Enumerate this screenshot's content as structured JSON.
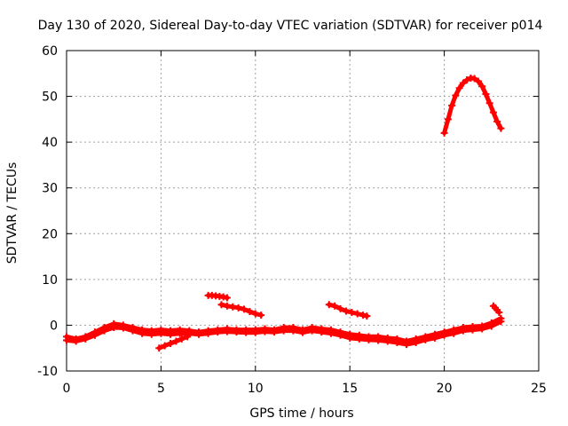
{
  "chart_data": {
    "type": "scatter",
    "title": "Day 130 of 2020, Sidereal Day-to-day VTEC variation (SDTVAR) for receiver p014",
    "xlabel": "GPS time / hours",
    "ylabel": "SDTVAR / TECUs",
    "xlim": [
      0,
      25
    ],
    "ylim": [
      -10,
      60
    ],
    "x_ticks": [
      0,
      5,
      10,
      15,
      20,
      25
    ],
    "y_ticks": [
      -10,
      0,
      10,
      20,
      30,
      40,
      50,
      60
    ],
    "x_tick_labels": [
      "0",
      "5",
      "10",
      "15",
      "20",
      "25"
    ],
    "y_tick_labels": [
      "-10",
      "0",
      "10",
      "20",
      "30",
      "40",
      "50",
      "60"
    ],
    "grid": true,
    "marker": "plus",
    "color": "#ff0000",
    "series": [
      {
        "name": "track-main",
        "x": [
          0,
          0.5,
          1,
          1.5,
          2,
          2.5,
          3,
          3.5,
          4,
          4.5,
          5,
          5.5,
          6,
          6.5,
          7,
          7.5,
          8,
          8.5,
          9,
          9.5,
          10,
          10.5,
          11,
          11.5,
          12,
          12.5,
          13,
          13.5,
          14,
          14.5,
          15,
          15.5,
          16,
          16.5,
          17,
          17.5,
          18,
          18.5,
          19,
          19.5,
          20,
          20.5,
          21,
          21.5,
          22,
          22.5,
          23
        ],
        "y": [
          -2.5,
          -3,
          -2.5,
          -1.5,
          -0.5,
          0.3,
          0,
          -0.5,
          -1,
          -1.2,
          -1,
          -1.2,
          -1,
          -1.2,
          -1.5,
          -1.2,
          -1,
          -0.8,
          -1,
          -1,
          -1,
          -0.8,
          -1,
          -0.5,
          -0.5,
          -1,
          -0.5,
          -0.8,
          -1,
          -1.5,
          -2,
          -2.2,
          -2.5,
          -2.5,
          -2.8,
          -3,
          -3.5,
          -3,
          -2.5,
          -2,
          -1.5,
          -1,
          -0.5,
          -0.3,
          -0.2,
          0.5,
          1.5
        ]
      },
      {
        "name": "track-lower",
        "x": [
          0,
          0.5,
          1,
          1.5,
          2,
          2.5,
          3,
          3.5,
          4,
          4.5,
          5,
          5.5,
          6,
          6.5,
          7,
          7.5,
          8,
          8.5,
          9,
          9.5,
          10,
          10.5,
          11,
          11.5,
          12,
          12.5,
          13,
          13.5,
          14,
          14.5,
          15,
          15.5,
          16,
          16.5,
          17,
          17.5,
          18,
          18.5,
          19,
          19.5,
          20,
          20.5,
          21,
          21.5,
          22,
          22.5,
          23
        ],
        "y": [
          -3.3,
          -3.5,
          -3,
          -2.2,
          -1.2,
          -0.5,
          -0.6,
          -1.2,
          -1.8,
          -2,
          -1.8,
          -2,
          -1.8,
          -1.8,
          -2,
          -1.8,
          -1.5,
          -1.4,
          -1.5,
          -1.6,
          -1.6,
          -1.4,
          -1.5,
          -1.2,
          -1.2,
          -1.6,
          -1.2,
          -1.5,
          -1.8,
          -2.2,
          -2.8,
          -3,
          -3.2,
          -3.3,
          -3.5,
          -3.8,
          -4.2,
          -3.8,
          -3.2,
          -2.8,
          -2.2,
          -1.8,
          -1.2,
          -1,
          -0.8,
          -0.2,
          0.8
        ]
      },
      {
        "name": "seg-a",
        "x": [
          4.9,
          5.2,
          5.5,
          5.8,
          6.1,
          6.4
        ],
        "y": [
          -5,
          -4.5,
          -4,
          -3.5,
          -3,
          -2.5
        ]
      },
      {
        "name": "seg-b",
        "x": [
          7.5,
          7.7,
          7.9,
          8.1,
          8.3,
          8.5
        ],
        "y": [
          6.5,
          6.5,
          6.4,
          6.3,
          6.2,
          6.0
        ]
      },
      {
        "name": "seg-c",
        "x": [
          8.2,
          8.5,
          8.8,
          9.1,
          9.4,
          9.7,
          10.0,
          10.3
        ],
        "y": [
          4.5,
          4.2,
          4.0,
          3.8,
          3.5,
          3.0,
          2.5,
          2.2
        ]
      },
      {
        "name": "seg-d",
        "x": [
          13.9,
          14.2,
          14.5,
          14.8,
          15.1,
          15.4,
          15.7,
          15.9
        ],
        "y": [
          4.5,
          4.2,
          3.6,
          3.1,
          2.8,
          2.5,
          2.2,
          2.0
        ]
      },
      {
        "name": "seg-e",
        "x": [
          22.6,
          22.7,
          22.8,
          22.9
        ],
        "y": [
          4.2,
          3.8,
          3.3,
          2.8
        ]
      },
      {
        "name": "arc-late",
        "x": [
          20.0,
          20.2,
          20.4,
          20.6,
          20.8,
          21.0,
          21.2,
          21.4,
          21.6,
          21.8,
          22.0,
          22.2,
          22.4,
          22.6,
          22.8,
          23.0
        ],
        "y": [
          42,
          45,
          48,
          50.2,
          51.8,
          52.9,
          53.6,
          54.0,
          53.9,
          53.3,
          52.2,
          50.5,
          48.5,
          46.5,
          44.5,
          43
        ]
      }
    ]
  }
}
